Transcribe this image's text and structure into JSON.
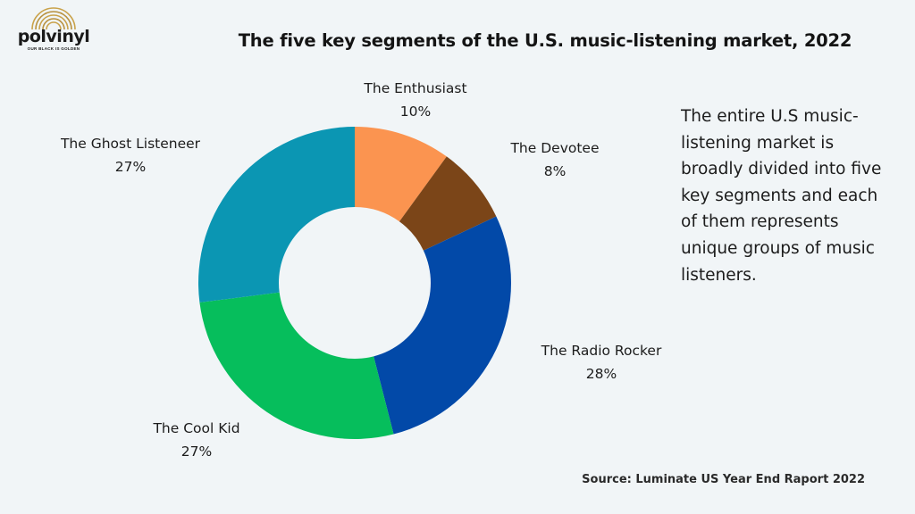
{
  "logo": {
    "name": "polvinyl",
    "tagline": "OUR BLACK IS GOLDEN"
  },
  "title": "The five key segments of the U.S. music-listening market, 2022",
  "description": "The entire U.S music-listening market is broadly divided into five key segments and each of them represents unique groups of music listeners.",
  "source": "Source: Luminate US Year End Raport 2022",
  "chart_data": {
    "type": "pie",
    "donut": true,
    "categories": [
      "The Enthusiast",
      "The Devotee",
      "The Radio Rocker",
      "The Cool Kid",
      "The Ghost Listeneer"
    ],
    "values": [
      10,
      8,
      28,
      27,
      27
    ],
    "value_labels": [
      "10%",
      "8%",
      "28%",
      "27%",
      "27%"
    ],
    "colors": [
      "#fb9450",
      "#7b4518",
      "#0249a8",
      "#06be5c",
      "#0b96b3"
    ]
  }
}
